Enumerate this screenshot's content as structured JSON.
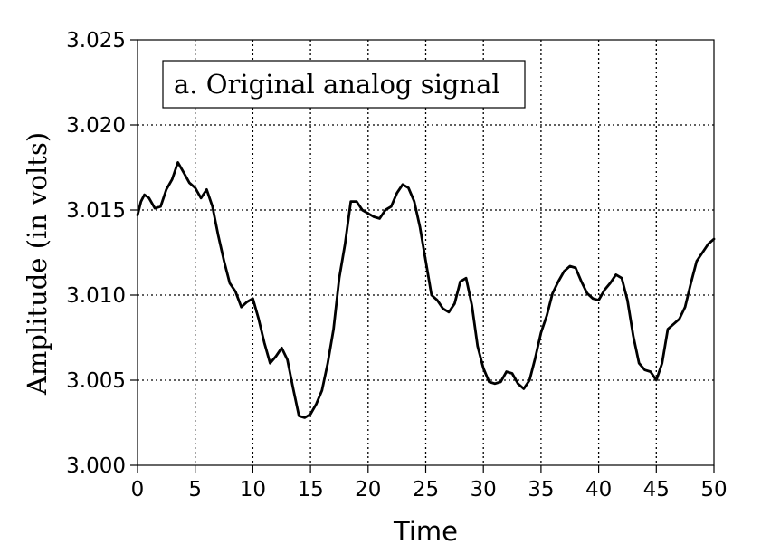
{
  "chart_data": {
    "type": "line",
    "title": "",
    "annotation": "a. Original analog signal",
    "xlabel": "Time",
    "ylabel": "Amplitude (in volts)",
    "xlim": [
      0,
      50
    ],
    "ylim": [
      3.0,
      3.025
    ],
    "xticks": [
      0,
      5,
      10,
      15,
      20,
      25,
      30,
      35,
      40,
      45,
      50
    ],
    "yticks": [
      "3.000",
      "3.005",
      "3.010",
      "3.015",
      "3.020",
      "3.025"
    ],
    "grid": true,
    "series": [
      {
        "x": [
          0,
          0.3,
          0.6,
          1.0,
          1.5,
          2.0,
          2.5,
          3.0,
          3.5,
          4.0,
          4.5,
          5.0,
          5.5,
          6.0,
          6.5,
          7.0,
          7.5,
          8.0,
          8.5,
          9.0,
          9.5,
          10.0,
          10.5,
          11.0,
          11.5,
          12.0,
          12.5,
          13.0,
          13.5,
          14.0,
          14.5,
          15.0,
          15.5,
          16.0,
          16.5,
          17.0,
          17.5,
          18.0,
          18.5,
          19.0,
          19.5,
          20.0,
          20.5,
          21.0,
          21.5,
          22.0,
          22.5,
          23.0,
          23.5,
          24.0,
          24.5,
          25.0,
          25.5,
          26.0,
          26.5,
          27.0,
          27.5,
          28.0,
          28.5,
          29.0,
          29.5,
          30.0,
          30.5,
          31.0,
          31.5,
          32.0,
          32.5,
          33.0,
          33.5,
          34.0,
          34.5,
          35.0,
          35.5,
          36.0,
          36.5,
          37.0,
          37.5,
          38.0,
          38.5,
          39.0,
          39.5,
          40.0,
          40.5,
          41.0,
          41.5,
          42.0,
          42.5,
          43.0,
          43.5,
          44.0,
          44.5,
          45.0,
          45.5,
          46.0,
          46.5,
          47.0,
          47.5,
          48.0,
          48.5,
          49.0,
          49.5,
          50.0
        ],
        "values": [
          3.0147,
          3.0155,
          3.0159,
          3.0157,
          3.0151,
          3.0152,
          3.0162,
          3.0168,
          3.0178,
          3.0172,
          3.0166,
          3.0163,
          3.0157,
          3.0162,
          3.0152,
          3.0135,
          3.012,
          3.0107,
          3.0102,
          3.0093,
          3.0096,
          3.0098,
          3.0086,
          3.0072,
          3.006,
          3.0064,
          3.0069,
          3.0062,
          3.0045,
          3.0029,
          3.0028,
          3.003,
          3.0036,
          3.0044,
          3.006,
          3.008,
          3.011,
          3.013,
          3.0155,
          3.0155,
          3.015,
          3.0148,
          3.0146,
          3.0145,
          3.015,
          3.0152,
          3.016,
          3.0165,
          3.0163,
          3.0155,
          3.014,
          3.012,
          3.01,
          3.0097,
          3.0092,
          3.009,
          3.0095,
          3.0108,
          3.011,
          3.0094,
          3.007,
          3.0057,
          3.0049,
          3.0048,
          3.0049,
          3.0055,
          3.0054,
          3.0048,
          3.0045,
          3.005,
          3.0063,
          3.0078,
          3.0088,
          3.0101,
          3.0108,
          3.0114,
          3.0117,
          3.0116,
          3.0108,
          3.0101,
          3.0098,
          3.0097,
          3.0103,
          3.0107,
          3.0112,
          3.011,
          3.0097,
          3.0076,
          3.006,
          3.0056,
          3.0055,
          3.005,
          3.006,
          3.008,
          3.0083,
          3.0086,
          3.0093,
          3.0107,
          3.012,
          3.0125,
          3.013,
          3.0133
        ]
      }
    ]
  }
}
